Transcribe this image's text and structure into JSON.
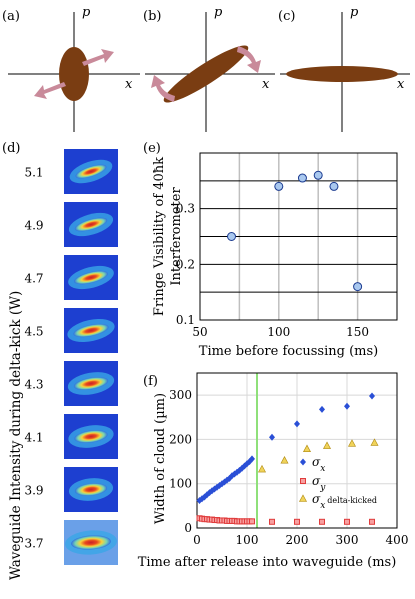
{
  "panels": {
    "a": {
      "label": "(a)",
      "p": "p",
      "x": "x"
    },
    "b": {
      "label": "(b)",
      "p": "p",
      "x": "x"
    },
    "c": {
      "label": "(c)",
      "p": "p",
      "x": "x"
    },
    "d": {
      "label": "(d)",
      "ylabel": "Waveguide Intensity during delta-kick (W)",
      "intensities": [
        "5.1",
        "4.9",
        "4.7",
        "4.5",
        "4.3",
        "4.1",
        "3.9",
        "3.7"
      ]
    },
    "e": {
      "label": "(e)"
    },
    "f": {
      "label": "(f)"
    }
  },
  "colors": {
    "ellipse": "#7a3d12",
    "arrow": "#c98a9a",
    "marker_x": "#2a4fd6",
    "marker_y": "#e03c3c",
    "marker_kick": "#f0d35a",
    "vline": "#8fe07a",
    "grid": "#bfbfbf"
  },
  "chart_data": [
    {
      "type": "scatter",
      "panel": "e",
      "xlabel": "Time before focussing (ms)",
      "ylabel": "Fringe Visibility of 40ħk Interferometer",
      "xlim": [
        50,
        175
      ],
      "ylim": [
        0.1,
        0.4
      ],
      "xticks": [
        "50",
        "100",
        "150"
      ],
      "yticks": [
        "0.1",
        "0.2",
        "0.3"
      ],
      "grid": true,
      "x": [
        70,
        100,
        115,
        125,
        135,
        150
      ],
      "y": [
        0.25,
        0.34,
        0.355,
        0.36,
        0.34,
        0.16
      ]
    },
    {
      "type": "scatter",
      "panel": "f",
      "xlabel": "Time after release into waveguide (ms)",
      "ylabel": "Width of cloud (µm)",
      "xlim": [
        0,
        400
      ],
      "ylim": [
        0,
        350
      ],
      "xticks": [
        "0",
        "100",
        "200",
        "300",
        "400"
      ],
      "yticks": [
        "0",
        "100",
        "200",
        "300"
      ],
      "grid": true,
      "vline": 120,
      "legend": "bottom-right",
      "series": [
        {
          "name": "σx",
          "marker": "diamond",
          "x": [
            5,
            10,
            15,
            20,
            25,
            30,
            35,
            40,
            45,
            50,
            55,
            60,
            65,
            70,
            75,
            80,
            85,
            90,
            95,
            100,
            105,
            110,
            150,
            200,
            250,
            300,
            350
          ],
          "y": [
            62,
            66,
            70,
            75,
            80,
            84,
            88,
            92,
            96,
            100,
            104,
            108,
            112,
            118,
            122,
            126,
            130,
            135,
            140,
            145,
            150,
            156,
            205,
            235,
            268,
            275,
            298
          ]
        },
        {
          "name": "σy",
          "marker": "square",
          "x": [
            5,
            10,
            15,
            20,
            25,
            30,
            35,
            40,
            45,
            50,
            55,
            60,
            65,
            70,
            75,
            80,
            85,
            90,
            95,
            100,
            105,
            110,
            150,
            200,
            250,
            300,
            350
          ],
          "y": [
            22,
            21,
            20,
            20,
            19,
            19,
            18,
            18,
            17,
            17,
            17,
            16,
            16,
            16,
            16,
            15,
            15,
            15,
            15,
            15,
            15,
            15,
            14,
            14,
            14,
            14,
            14
          ]
        },
        {
          "name": "σx delta-kicked",
          "marker": "triangle",
          "x": [
            130,
            175,
            220,
            260,
            310,
            355
          ],
          "y": [
            132,
            152,
            178,
            185,
            190,
            192
          ]
        }
      ]
    }
  ]
}
